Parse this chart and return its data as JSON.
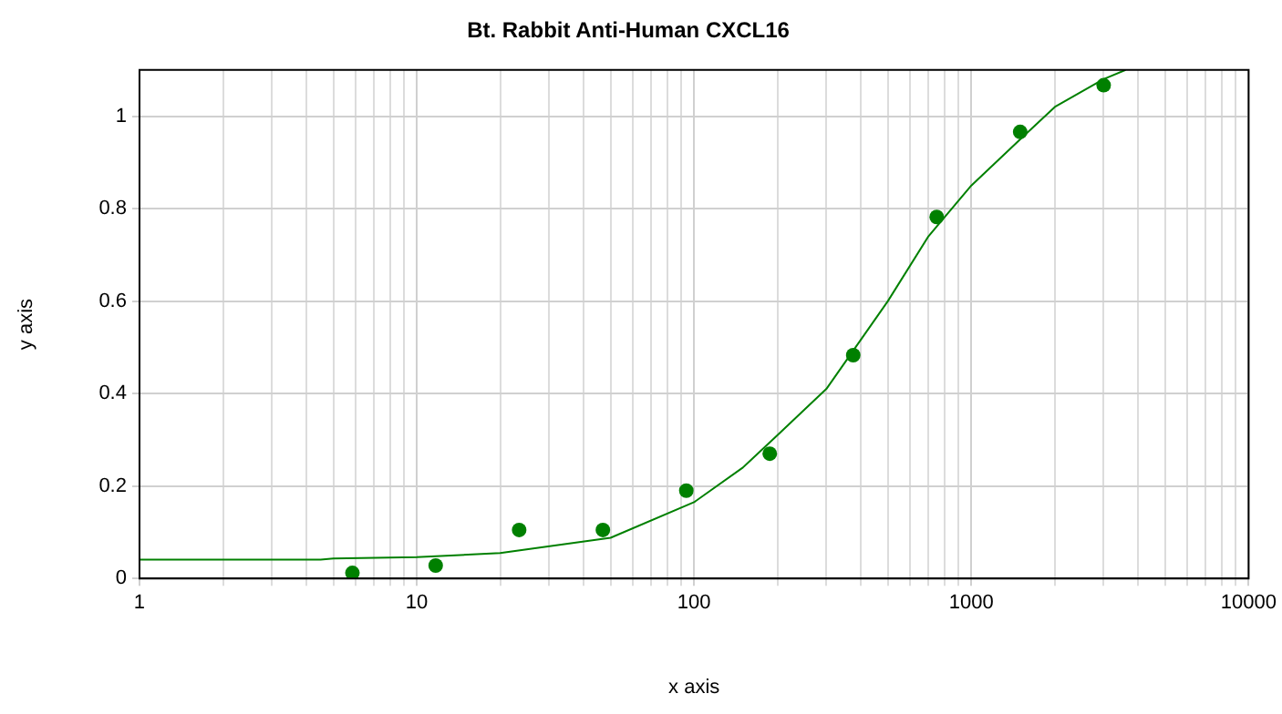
{
  "chart_data": {
    "type": "scatter",
    "title": "Bt. Rabbit Anti-Human CXCL16",
    "xlabel": "x axis",
    "ylabel": "y axis",
    "log": "x",
    "grid": true,
    "legend": false,
    "xlim": [
      1,
      10000
    ],
    "xticks": [
      1,
      {
        "value": 2,
        "label": null
      },
      {
        "value": 3,
        "label": null
      },
      {
        "value": 4,
        "label": null
      },
      {
        "value": 5,
        "label": null
      },
      {
        "value": 6,
        "label": null
      },
      {
        "value": 7,
        "label": null
      },
      {
        "value": 8,
        "label": null
      },
      {
        "value": 9,
        "label": null
      },
      10,
      {
        "value": 20,
        "label": null
      },
      {
        "value": 30,
        "label": null
      },
      {
        "value": 40,
        "label": null
      },
      {
        "value": 50,
        "label": null
      },
      {
        "value": 60,
        "label": null
      },
      {
        "value": 70,
        "label": null
      },
      {
        "value": 80,
        "label": null
      },
      {
        "value": 90,
        "label": null
      },
      100,
      {
        "value": 200,
        "label": null
      },
      {
        "value": 300,
        "label": null
      },
      {
        "value": 400,
        "label": null
      },
      {
        "value": 500,
        "label": null
      },
      {
        "value": 600,
        "label": null
      },
      {
        "value": 700,
        "label": null
      },
      {
        "value": 800,
        "label": null
      },
      {
        "value": 900,
        "label": null
      },
      1000,
      {
        "value": 2000,
        "label": null
      },
      {
        "value": 3000,
        "label": null
      },
      {
        "value": 4000,
        "label": null
      },
      {
        "value": 5000,
        "label": null
      },
      {
        "value": 6000,
        "label": null
      },
      {
        "value": 7000,
        "label": null
      },
      {
        "value": 8000,
        "label": null
      },
      {
        "value": 9000,
        "label": null
      },
      10000
    ],
    "ylim": [
      0,
      1.1
    ],
    "yticks": [
      0,
      0.2,
      0.4,
      0.6,
      0.8,
      1
    ],
    "series": [
      {
        "type": "line",
        "color": "#008000",
        "marker": "none",
        "line_style": "solid",
        "x": [
          1,
          2,
          4.5,
          5,
          10,
          20,
          50,
          100,
          150,
          200,
          300,
          500,
          700,
          1000,
          1500,
          2000,
          3000,
          3600
        ],
        "values": [
          0.041,
          0.041,
          0.041,
          0.043,
          0.046,
          0.055,
          0.088,
          0.165,
          0.24,
          0.31,
          0.41,
          0.6,
          0.74,
          0.85,
          0.95,
          1.02,
          1.08,
          1.1
        ]
      },
      {
        "color": "#008000",
        "marker": "circle",
        "x": [
          5.86,
          11.7,
          23.4,
          46.9,
          93.75,
          187.5,
          375,
          750,
          1500,
          3000
        ],
        "values": [
          0.012,
          0.028,
          0.105,
          0.105,
          0.19,
          0.27,
          0.483,
          0.782,
          0.966,
          1.067
        ]
      }
    ]
  }
}
